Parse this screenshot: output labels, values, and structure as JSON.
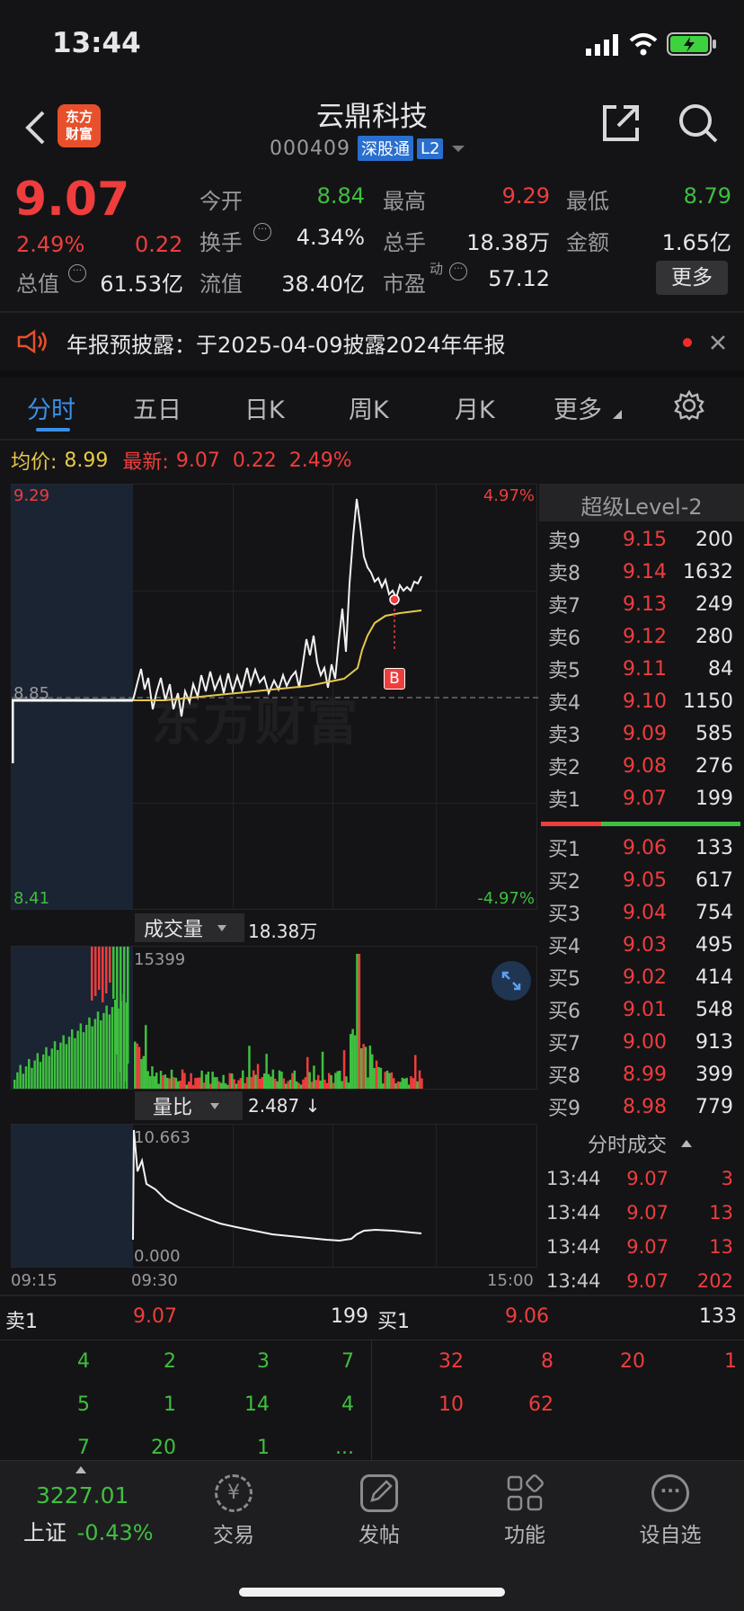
{
  "status_bar": {
    "time": "13:44"
  },
  "header": {
    "logo_line1": "东方",
    "logo_line2": "财富",
    "title": "云鼎科技",
    "code": "000409",
    "badge_market": "深股通",
    "badge_level": "L2"
  },
  "quote": {
    "price": "9.07",
    "change_pct": "2.49%",
    "change_amt": "0.22",
    "open_label": "今开",
    "open": "8.84",
    "high_label": "最高",
    "high": "9.29",
    "low_label": "最低",
    "low": "8.79",
    "turnover_label": "换手",
    "turnover": "4.34%",
    "volume_label": "总手",
    "volume": "18.38万",
    "amount_label": "金额",
    "amount": "1.65亿",
    "mktcap_label": "总值",
    "mktcap": "61.53亿",
    "float_label": "流值",
    "float": "38.40亿",
    "pe_label": "市盈",
    "pe_sup": "动",
    "pe": "57.12",
    "more_button": "更多"
  },
  "notice": {
    "text": "年报预披露：于2025-04-09披露2024年年报"
  },
  "tabs": [
    "分时",
    "五日",
    "日K",
    "周K",
    "月K",
    "更多"
  ],
  "info_line": {
    "avg_label": "均价:",
    "avg": "8.99",
    "last_label": "最新:",
    "last": "9.07",
    "chg": "0.22",
    "pct": "2.49%"
  },
  "chart_labels": {
    "top_price": "9.29",
    "mid_price": "8.85",
    "bottom_price": "8.41",
    "top_pct": "4.97%",
    "bottom_pct": "-4.97%",
    "watermark": "东方财富",
    "marker": "B"
  },
  "volume_panel": {
    "selector": "成交量",
    "total": "18.38万",
    "max": "15399"
  },
  "ratio_panel": {
    "selector": "量比",
    "value": "2.487 ↓",
    "max": "10.663",
    "min": "0.000"
  },
  "time_axis": [
    "09:15",
    "09:30",
    "15:00"
  ],
  "order_book": {
    "title": "超级Level-2",
    "asks": [
      {
        "label": "卖9",
        "price": "9.15",
        "vol": "200"
      },
      {
        "label": "卖8",
        "price": "9.14",
        "vol": "1632"
      },
      {
        "label": "卖7",
        "price": "9.13",
        "vol": "249"
      },
      {
        "label": "卖6",
        "price": "9.12",
        "vol": "280"
      },
      {
        "label": "卖5",
        "price": "9.11",
        "vol": "84"
      },
      {
        "label": "卖4",
        "price": "9.10",
        "vol": "1150"
      },
      {
        "label": "卖3",
        "price": "9.09",
        "vol": "585"
      },
      {
        "label": "卖2",
        "price": "9.08",
        "vol": "276"
      },
      {
        "label": "卖1",
        "price": "9.07",
        "vol": "199"
      }
    ],
    "bids": [
      {
        "label": "买1",
        "price": "9.06",
        "vol": "133"
      },
      {
        "label": "买2",
        "price": "9.05",
        "vol": "617"
      },
      {
        "label": "买3",
        "price": "9.04",
        "vol": "754"
      },
      {
        "label": "买4",
        "price": "9.03",
        "vol": "495"
      },
      {
        "label": "买5",
        "price": "9.02",
        "vol": "414"
      },
      {
        "label": "买6",
        "price": "9.01",
        "vol": "548"
      },
      {
        "label": "买7",
        "price": "9.00",
        "vol": "913"
      },
      {
        "label": "买8",
        "price": "8.99",
        "vol": "399"
      },
      {
        "label": "买9",
        "price": "8.98",
        "vol": "779"
      }
    ]
  },
  "ticks": {
    "title": "分时成交",
    "rows": [
      {
        "time": "13:44",
        "price": "9.07",
        "vol": "3"
      },
      {
        "time": "13:44",
        "price": "9.07",
        "vol": "13"
      },
      {
        "time": "13:44",
        "price": "9.07",
        "vol": "13"
      },
      {
        "time": "13:44",
        "price": "9.07",
        "vol": "202"
      }
    ]
  },
  "queue": {
    "sell_label": "卖1",
    "sell_price": "9.07",
    "sell_vol": "199",
    "buy_label": "买1",
    "buy_price": "9.06",
    "buy_vol": "133",
    "sell_orders": [
      "4",
      "2",
      "3",
      "7",
      "5",
      "1",
      "14",
      "4",
      "7",
      "20",
      "1",
      "..."
    ],
    "buy_orders": [
      "32",
      "8",
      "20",
      "1",
      "10",
      "62"
    ]
  },
  "bottom_nav": {
    "index_value": "3227.01",
    "index_name": "上证",
    "index_change": "-0.43%",
    "items": [
      "交易",
      "发帖",
      "功能",
      "设自选"
    ]
  },
  "colors": {
    "up": "#ef3d3d",
    "down": "#3fbf3f",
    "accent": "#3b8fe6",
    "avg_line": "#e6c84b"
  }
}
